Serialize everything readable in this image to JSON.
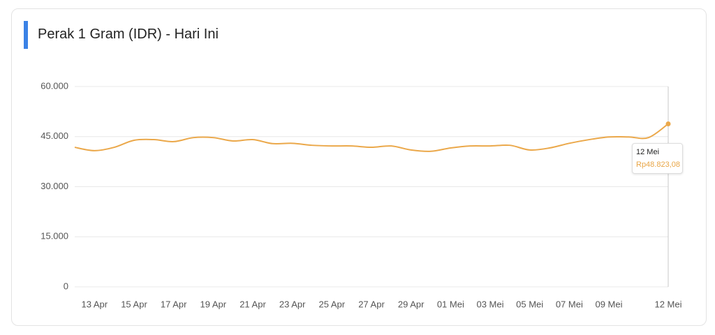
{
  "chart_data": {
    "type": "line",
    "title": "Perak 1 Gram (IDR) - Hari Ini",
    "categories": [
      null,
      "13 Apr",
      null,
      "15 Apr",
      null,
      "17 Apr",
      null,
      "19 Apr",
      null,
      "21 Apr",
      null,
      "23 Apr",
      null,
      "25 Apr",
      null,
      "27 Apr",
      null,
      "29 Apr",
      null,
      "01 Mei",
      null,
      "03 Mei",
      null,
      "05 Mei",
      null,
      "07 Mei",
      null,
      "09 Mei",
      null,
      null,
      "12 Mei"
    ],
    "values": [
      41800,
      40800,
      41800,
      43900,
      44100,
      43500,
      44700,
      44700,
      43700,
      44100,
      42900,
      43000,
      42400,
      42200,
      42200,
      41800,
      42200,
      41000,
      40600,
      41600,
      42200,
      42200,
      42400,
      41000,
      41600,
      43000,
      44100,
      44900,
      44900,
      44700,
      48823.08
    ],
    "value_labels": [
      null,
      null,
      null,
      null,
      null,
      null,
      null,
      null,
      null,
      null,
      null,
      null,
      null,
      null,
      null,
      null,
      null,
      null,
      null,
      null,
      null,
      null,
      null,
      null,
      null,
      null,
      null,
      null,
      null,
      null,
      "Rp48.823,08"
    ],
    "color": "#eba84a",
    "ylim": [
      0,
      60000
    ],
    "yticks": [
      0,
      {
        "value": 15000,
        "label": "15.000"
      },
      {
        "value": 30000,
        "label": "30.000"
      },
      {
        "value": 45000,
        "label": "45.000"
      },
      {
        "value": 60000,
        "label": "60.000"
      }
    ],
    "grid": true
  }
}
